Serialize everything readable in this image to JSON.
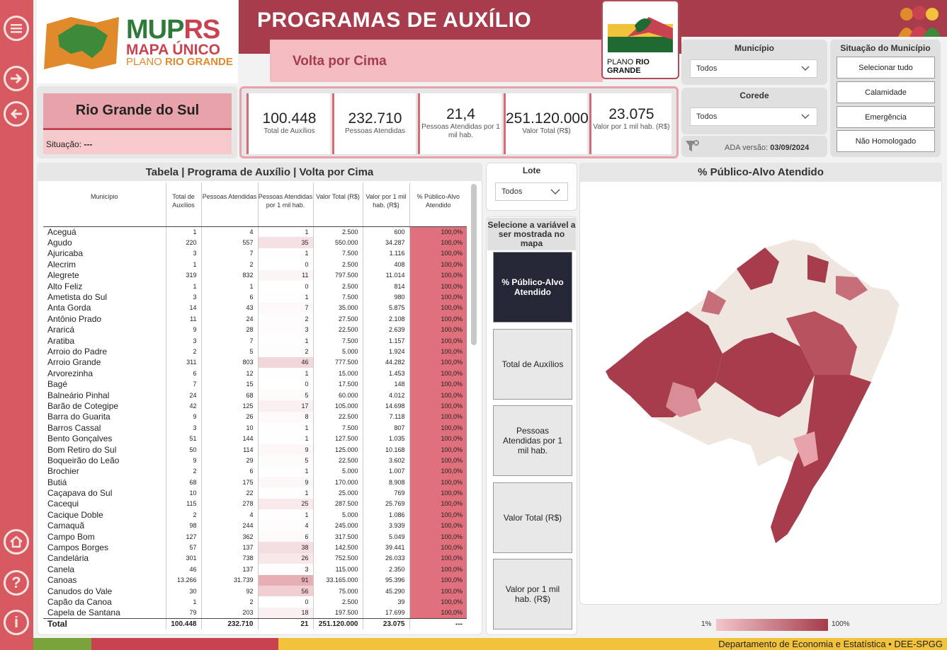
{
  "header": {
    "title": "PROGRAMAS DE AUXÍLIO",
    "subtitle": "Volta por Cima",
    "logo_line1_a": "MUP",
    "logo_line1_b": "RS",
    "logo_line2": "MAPA ÚNICO",
    "logo_line3_a": "PLANO ",
    "logo_line3_b": "RIO GRANDE",
    "plano_logo_a": "PLANO ",
    "plano_logo_b": "RIO GRANDE"
  },
  "colors": {
    "accent": "#a63c4c",
    "nav": "#d75a60",
    "pink_light": "#f2bcc1",
    "choropleth_high": "#a63c4c",
    "choropleth_low": "#e8a3aa"
  },
  "filters": {
    "municipio_title": "Município",
    "municipio_value": "Todos",
    "corede_title": "Corede",
    "corede_value": "Todos",
    "situacao_title": "Situação do Município",
    "situacao_options": [
      "Selecionar tudo",
      "Calamidade",
      "Emergência",
      "Não Homologado"
    ],
    "ada_label": "ADA versão: ",
    "ada_date": "03/09/2024"
  },
  "region": {
    "name": "Rio Grande do Sul",
    "status_label": "Situação:",
    "status_value": "---"
  },
  "kpis": [
    {
      "value": "100.448",
      "label": "Total de Auxílios"
    },
    {
      "value": "232.710",
      "label": "Pessoas Atendidas"
    },
    {
      "value": "21,4",
      "label": "Pessoas Atendidas por 1 mil hab."
    },
    {
      "value": "251.120.000",
      "label": "Valor Total (R$)"
    },
    {
      "value": "23.075",
      "label": "Valor por 1 mil hab. (R$)"
    }
  ],
  "table": {
    "title": "Tabela | Programa de Auxílio | Volta por Cima",
    "columns": [
      "Município",
      "Total de Auxílios",
      "Pessoas Atendidas",
      "Pessoas Atendidas por 1 mil hab.",
      "Valor Total (R$)",
      "Valor por 1 mil hab. (R$)",
      "% Público-Alvo Atendido"
    ],
    "rows": [
      [
        "Aceguá",
        "1",
        "4",
        "1",
        "2.500",
        "600",
        "100,0%"
      ],
      [
        "Agudo",
        "220",
        "557",
        "35",
        "550.000",
        "34.287",
        "100,0%"
      ],
      [
        "Ajuricaba",
        "3",
        "7",
        "1",
        "7.500",
        "1.116",
        "100,0%"
      ],
      [
        "Alecrim",
        "1",
        "2",
        "0",
        "2.500",
        "408",
        "100,0%"
      ],
      [
        "Alegrete",
        "319",
        "832",
        "11",
        "797.500",
        "11.014",
        "100,0%"
      ],
      [
        "Alto Feliz",
        "1",
        "1",
        "0",
        "2.500",
        "814",
        "100,0%"
      ],
      [
        "Ametista do Sul",
        "3",
        "6",
        "1",
        "7.500",
        "980",
        "100,0%"
      ],
      [
        "Anta Gorda",
        "14",
        "43",
        "7",
        "35.000",
        "5.875",
        "100,0%"
      ],
      [
        "Antônio Prado",
        "11",
        "24",
        "2",
        "27.500",
        "2.108",
        "100,0%"
      ],
      [
        "Araricá",
        "9",
        "28",
        "3",
        "22.500",
        "2.639",
        "100,0%"
      ],
      [
        "Aratiba",
        "3",
        "7",
        "1",
        "7.500",
        "1.157",
        "100,0%"
      ],
      [
        "Arroio do Padre",
        "2",
        "5",
        "2",
        "5.000",
        "1.924",
        "100,0%"
      ],
      [
        "Arroio Grande",
        "311",
        "803",
        "46",
        "777.500",
        "44.282",
        "100,0%"
      ],
      [
        "Arvorezinha",
        "6",
        "12",
        "1",
        "15.000",
        "1.453",
        "100,0%"
      ],
      [
        "Bagé",
        "7",
        "15",
        "0",
        "17.500",
        "148",
        "100,0%"
      ],
      [
        "Balneário Pinhal",
        "24",
        "68",
        "5",
        "60.000",
        "4.012",
        "100,0%"
      ],
      [
        "Barão de Cotegipe",
        "42",
        "125",
        "17",
        "105.000",
        "14.698",
        "100,0%"
      ],
      [
        "Barra do Guarita",
        "9",
        "26",
        "8",
        "22.500",
        "7.118",
        "100,0%"
      ],
      [
        "Barros Cassal",
        "3",
        "10",
        "1",
        "7.500",
        "807",
        "100,0%"
      ],
      [
        "Bento Gonçalves",
        "51",
        "144",
        "1",
        "127.500",
        "1.035",
        "100,0%"
      ],
      [
        "Bom Retiro do Sul",
        "50",
        "114",
        "9",
        "125.000",
        "10.168",
        "100,0%"
      ],
      [
        "Boqueirão do Leão",
        "9",
        "29",
        "5",
        "22.500",
        "3.602",
        "100,0%"
      ],
      [
        "Brochier",
        "2",
        "6",
        "1",
        "5.000",
        "1.007",
        "100,0%"
      ],
      [
        "Butiá",
        "68",
        "175",
        "9",
        "170.000",
        "8.908",
        "100,0%"
      ],
      [
        "Caçapava do Sul",
        "10",
        "22",
        "1",
        "25.000",
        "769",
        "100,0%"
      ],
      [
        "Cacequi",
        "115",
        "278",
        "25",
        "287.500",
        "25.769",
        "100,0%"
      ],
      [
        "Cacique Doble",
        "2",
        "4",
        "1",
        "5.000",
        "1.086",
        "100,0%"
      ],
      [
        "Camaquã",
        "98",
        "244",
        "4",
        "245.000",
        "3.939",
        "100,0%"
      ],
      [
        "Campo Bom",
        "127",
        "362",
        "6",
        "317.500",
        "5.049",
        "100,0%"
      ],
      [
        "Campos Borges",
        "57",
        "137",
        "38",
        "142.500",
        "39.441",
        "100,0%"
      ],
      [
        "Candelária",
        "301",
        "738",
        "26",
        "752.500",
        "26.033",
        "100,0%"
      ],
      [
        "Canela",
        "46",
        "137",
        "3",
        "115.000",
        "2.350",
        "100,0%"
      ],
      [
        "Canoas",
        "13.266",
        "31.739",
        "91",
        "33.165.000",
        "95.396",
        "100,0%"
      ],
      [
        "Canudos do Vale",
        "30",
        "92",
        "56",
        "75.000",
        "45.290",
        "100,0%"
      ],
      [
        "Capão da Canoa",
        "1",
        "2",
        "0",
        "2.500",
        "39",
        "100,0%"
      ],
      [
        "Capela de Santana",
        "79",
        "203",
        "18",
        "197.500",
        "17.699",
        "100,0%"
      ]
    ],
    "total": [
      "Total",
      "100.448",
      "232.710",
      "21",
      "251.120.000",
      "23.075",
      "---"
    ]
  },
  "lote": {
    "title": "Lote",
    "value": "Todos"
  },
  "variable_selector": {
    "title": "Selecione a variável a ser mostrada no mapa",
    "options": [
      "% Público-Alvo Atendido",
      "Total de Auxílios",
      "Pessoas Atendidas por 1 mil hab.",
      "Valor Total (R$)",
      "Valor por 1 mil hab. (R$)"
    ]
  },
  "map": {
    "title": "% Público-Alvo Atendido",
    "legend_min": "1%",
    "legend_max": "100%"
  },
  "footer": {
    "text": "Departamento de Economia e Estatística • DEE-SPGG"
  }
}
